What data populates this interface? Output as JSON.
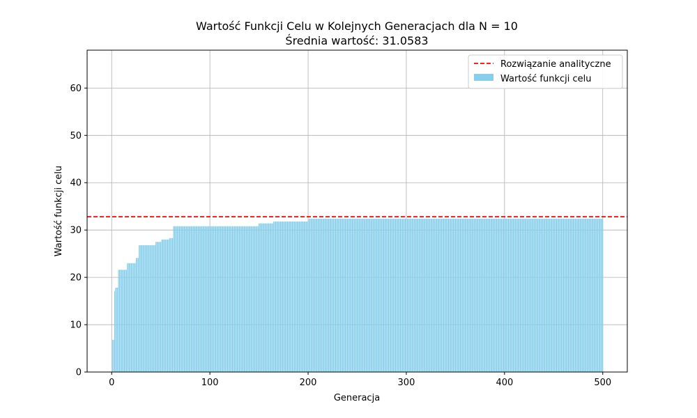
{
  "chart_data": {
    "type": "bar",
    "title": "Wartość Funkcji Celu w Kolejnych Generacjach dla N = 10",
    "subtitle": "Średnia wartość: 31.0583",
    "xlabel": "Generacja",
    "ylabel": "Wartość funkcji celu",
    "xlim": [
      -25,
      525
    ],
    "ylim": [
      0,
      68
    ],
    "x_ticks": [
      0,
      100,
      200,
      300,
      400,
      500
    ],
    "y_ticks": [
      0,
      10,
      20,
      30,
      40,
      50,
      60
    ],
    "grid": true,
    "legend_position": "top-right",
    "bar_color": "#87ceeb",
    "reference_color": "#ff0000",
    "series": [
      {
        "name": "Wartość funkcji celu",
        "x_start": 1,
        "x_end": 500,
        "step_values": [
          {
            "from": 1,
            "to": 2,
            "value": 6.8
          },
          {
            "from": 3,
            "to": 3,
            "value": 17.1
          },
          {
            "from": 4,
            "to": 6,
            "value": 17.8
          },
          {
            "from": 7,
            "to": 15,
            "value": 21.6
          },
          {
            "from": 16,
            "to": 24,
            "value": 23.0
          },
          {
            "from": 25,
            "to": 27,
            "value": 24.1
          },
          {
            "from": 28,
            "to": 44,
            "value": 26.8
          },
          {
            "from": 45,
            "to": 50,
            "value": 27.5
          },
          {
            "from": 51,
            "to": 58,
            "value": 28.0
          },
          {
            "from": 59,
            "to": 62,
            "value": 28.3
          },
          {
            "from": 63,
            "to": 149,
            "value": 30.8
          },
          {
            "from": 150,
            "to": 164,
            "value": 31.4
          },
          {
            "from": 165,
            "to": 200,
            "value": 31.8
          },
          {
            "from": 201,
            "to": 500,
            "value": 32.4
          }
        ]
      }
    ],
    "reference_line": {
      "name": "Rozwiązanie analityczne",
      "value": 32.8
    }
  }
}
